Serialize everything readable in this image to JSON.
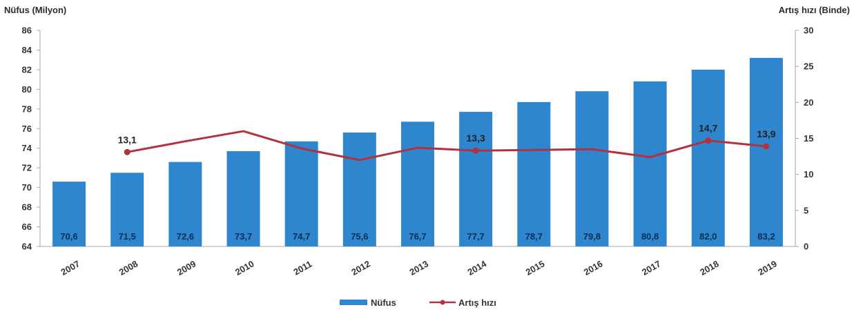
{
  "chart_data": {
    "type": "bar",
    "categories": [
      "2007",
      "2008",
      "2009",
      "2010",
      "2011",
      "2012",
      "2013",
      "2014",
      "2015",
      "2016",
      "2017",
      "2018",
      "2019"
    ],
    "series": [
      {
        "name": "Nüfus",
        "type": "bar",
        "axis": "left",
        "values": [
          70.6,
          71.5,
          72.6,
          73.7,
          74.7,
          75.6,
          76.7,
          77.7,
          78.7,
          79.8,
          80.8,
          82.0,
          83.2
        ],
        "labels": [
          "70,6",
          "71,5",
          "72,6",
          "73,7",
          "74,7",
          "75,6",
          "76,7",
          "77,7",
          "78,7",
          "79,8",
          "80,8",
          "82,0",
          "83,2"
        ],
        "color": "#2e86cf"
      },
      {
        "name": "Artış hızı",
        "type": "line",
        "axis": "right",
        "values": [
          null,
          13.1,
          14.6,
          16.0,
          13.6,
          12.0,
          13.7,
          13.3,
          13.4,
          13.5,
          12.4,
          14.7,
          13.9
        ],
        "point_labels": [
          {
            "index": 1,
            "text": "13,1"
          },
          {
            "index": 7,
            "text": "13,3"
          },
          {
            "index": 11,
            "text": "14,7"
          },
          {
            "index": 12,
            "text": "13,9"
          }
        ],
        "color": "#b5303a"
      }
    ],
    "y_left": {
      "label": "Nüfus (Milyon)",
      "min": 64,
      "max": 86,
      "ticks": [
        "64",
        "66",
        "68",
        "70",
        "72",
        "74",
        "76",
        "78",
        "80",
        "82",
        "84",
        "86"
      ]
    },
    "y_right": {
      "label": "Artış hızı (Binde)",
      "min": 0,
      "max": 30,
      "ticks": [
        "0",
        "5",
        "10",
        "15",
        "20",
        "25",
        "30"
      ]
    },
    "grid": false,
    "legend_position": "bottom-center"
  }
}
